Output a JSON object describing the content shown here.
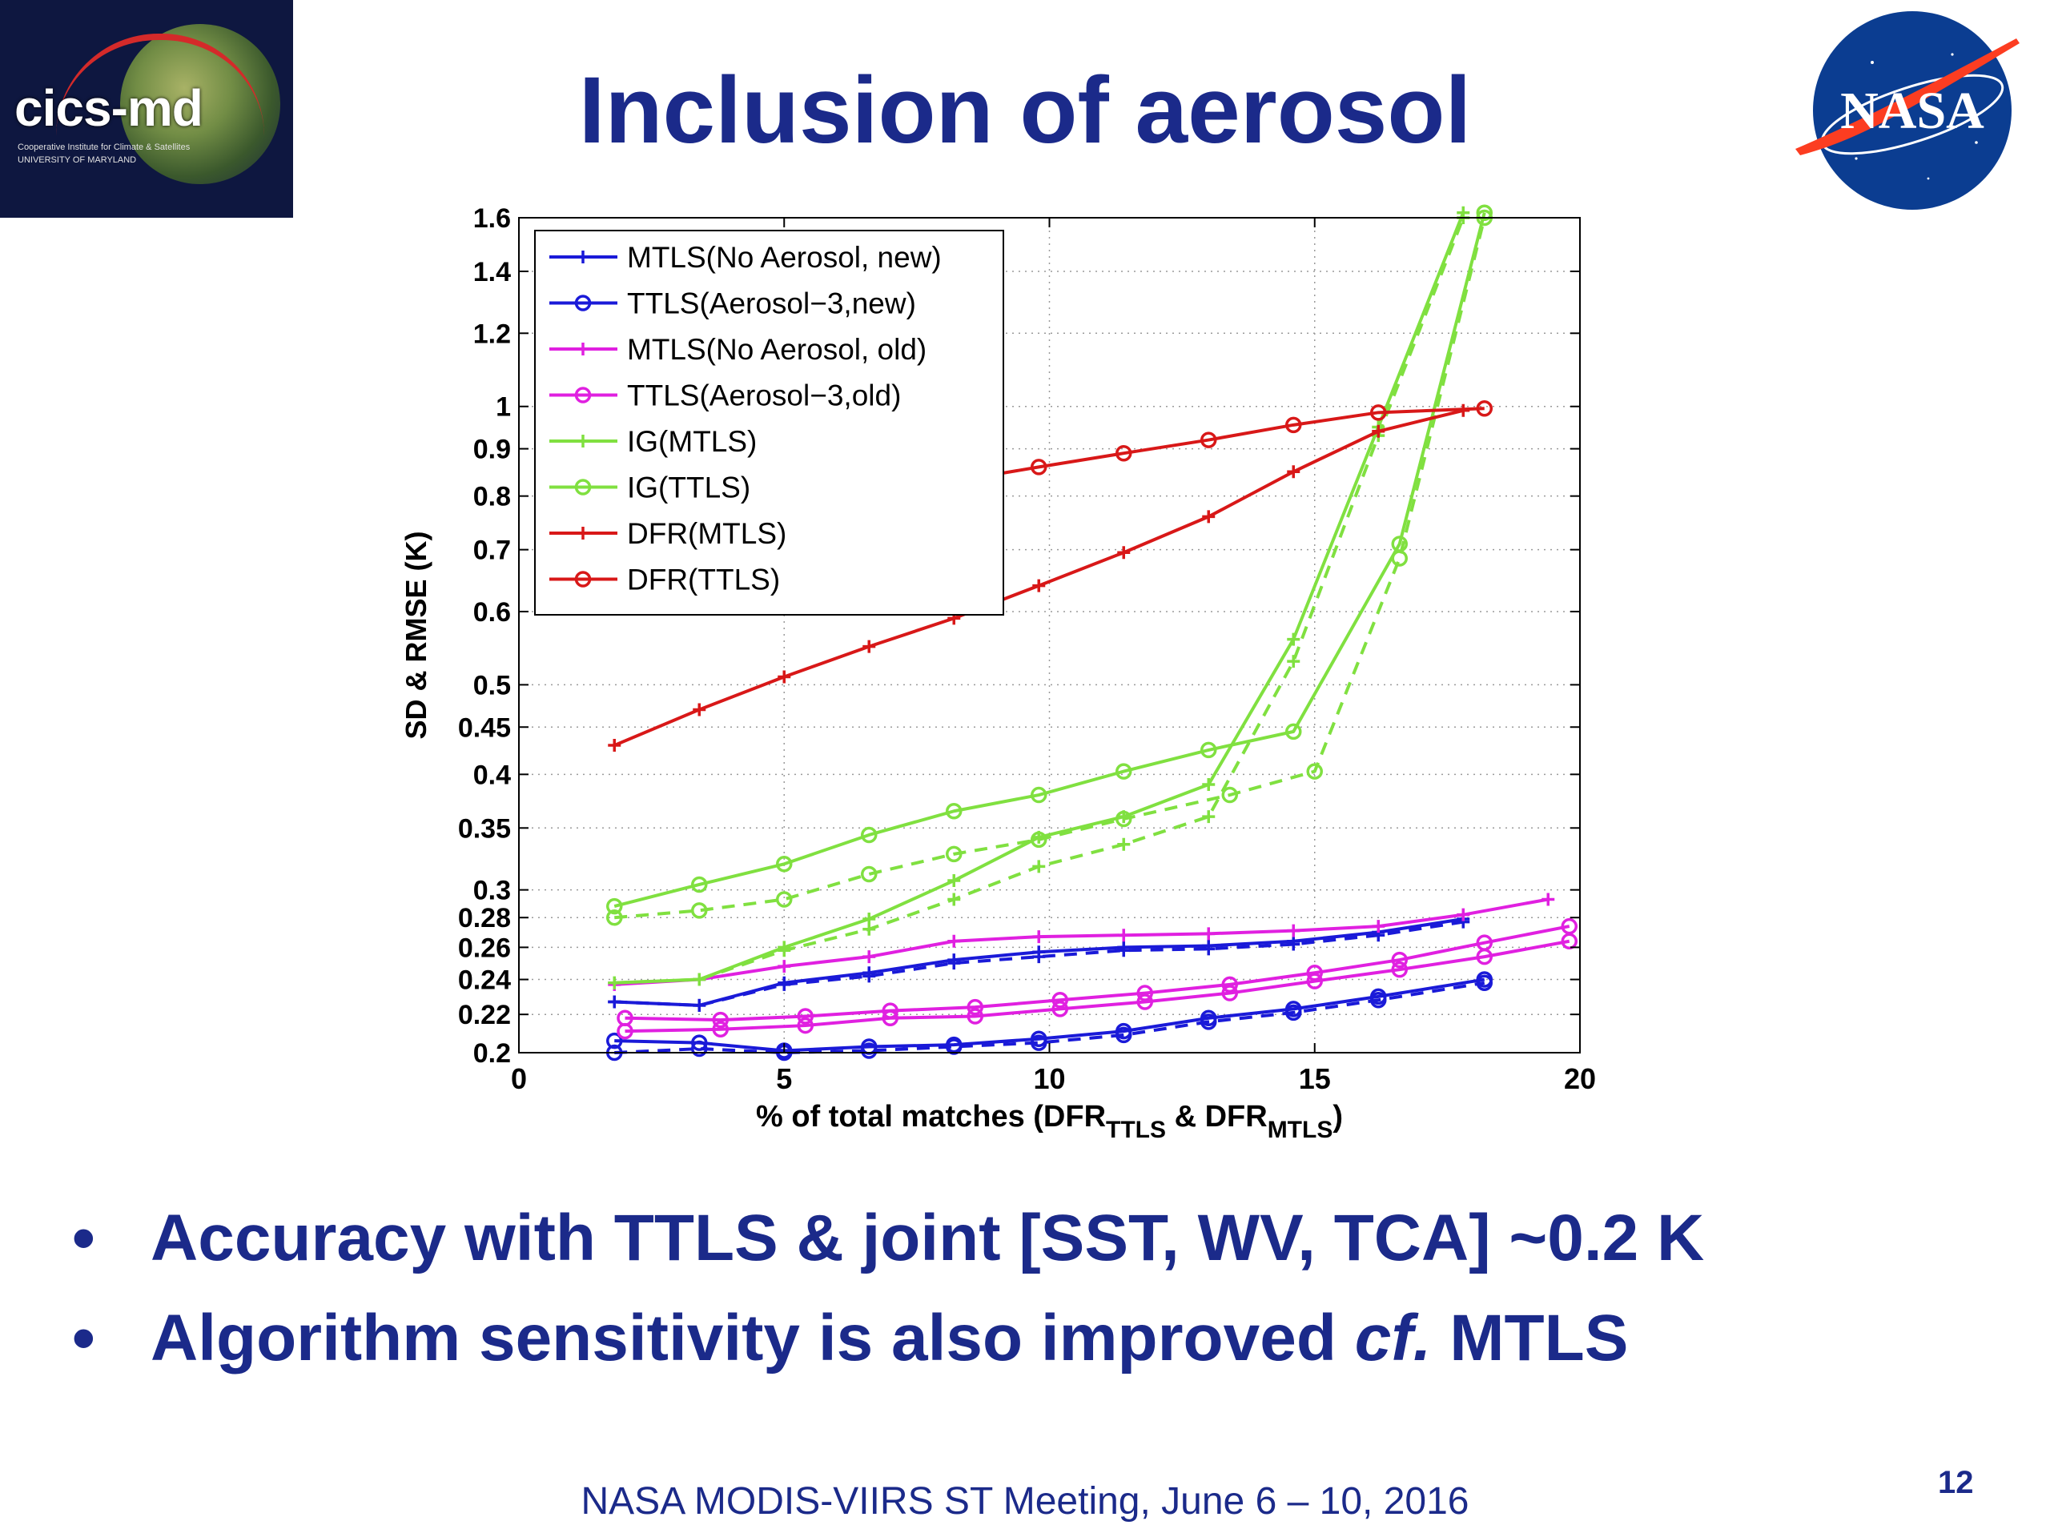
{
  "logo": {
    "word": "cics-md",
    "line1": "Cooperative Institute for Climate & Satellites",
    "line2": "UNIVERSITY OF MARYLAND"
  },
  "nasa_logo": {
    "word": "NASA"
  },
  "title": "Inclusion of aerosol",
  "chart_data": {
    "type": "line",
    "xlabel": "% of total matches (DFR_TTLS & DFR_MTLS)",
    "xlabel_parts": {
      "a": "% of total matches (DFR",
      "sub1": "TTLS",
      "b": " & DFR",
      "sub2": "MTLS",
      "c": ")"
    },
    "ylabel": "SD & RMSE (K)",
    "xlim": [
      0,
      20
    ],
    "ylim": [
      0.2,
      1.6
    ],
    "yscale": "log",
    "grid": true,
    "legend_position": "top-left",
    "xticks": [
      "0",
      "5",
      "10",
      "15",
      "20"
    ],
    "xtick_values": [
      0,
      5,
      10,
      15,
      20
    ],
    "yticks": [
      "0.2",
      "0.22",
      "0.24",
      "0.26",
      "0.28",
      "0.3",
      "0.35",
      "0.4",
      "0.45",
      "0.5",
      "0.6",
      "0.7",
      "0.8",
      "0.9",
      "1",
      "1.2",
      "1.4",
      "1.6"
    ],
    "ytick_values": [
      0.2,
      0.22,
      0.24,
      0.26,
      0.28,
      0.3,
      0.35,
      0.4,
      0.45,
      0.5,
      0.6,
      0.7,
      0.8,
      0.9,
      1,
      1.2,
      1.4,
      1.6
    ],
    "legend": [
      {
        "name": "MTLS(No Aerosol, new)",
        "color": "#1a1ad8",
        "marker": "plus"
      },
      {
        "name": "TTLS(Aerosol−3,new)",
        "color": "#1a1ad8",
        "marker": "circle"
      },
      {
        "name": "MTLS(No Aerosol, old)",
        "color": "#e020e0",
        "marker": "plus"
      },
      {
        "name": "TTLS(Aerosol−3,old)",
        "color": "#e020e0",
        "marker": "circle"
      },
      {
        "name": "IG(MTLS)",
        "color": "#80e040",
        "marker": "plus"
      },
      {
        "name": "IG(TTLS)",
        "color": "#80e040",
        "marker": "circle"
      },
      {
        "name": "DFR(MTLS)",
        "color": "#d81818",
        "marker": "plus"
      },
      {
        "name": "DFR(TTLS)",
        "color": "#d81818",
        "marker": "circle"
      }
    ],
    "series": [
      {
        "color": "#1a1ad8",
        "marker": "plus",
        "dash": false,
        "x": [
          1.8,
          3.4,
          5.0,
          6.6,
          8.2,
          9.8,
          11.4,
          13.0,
          14.6,
          16.2,
          17.8
        ],
        "y": [
          0.227,
          0.225,
          0.238,
          0.244,
          0.252,
          0.257,
          0.26,
          0.261,
          0.264,
          0.27,
          0.279
        ]
      },
      {
        "color": "#1a1ad8",
        "marker": "plus",
        "dash": true,
        "x": [
          1.8,
          3.4,
          5.0,
          6.6,
          8.2,
          9.8,
          11.4,
          13.0,
          14.6,
          16.2,
          17.8
        ],
        "y": [
          0.227,
          0.225,
          0.237,
          0.242,
          0.25,
          0.254,
          0.258,
          0.259,
          0.262,
          0.268,
          0.277
        ]
      },
      {
        "color": "#1a1ad8",
        "marker": "circle",
        "dash": false,
        "x": [
          1.8,
          3.4,
          5.0,
          6.6,
          8.2,
          9.8,
          11.4,
          13.0,
          14.6,
          16.2,
          18.2
        ],
        "y": [
          0.206,
          0.205,
          0.201,
          0.203,
          0.204,
          0.207,
          0.211,
          0.218,
          0.223,
          0.23,
          0.24
        ]
      },
      {
        "color": "#1a1ad8",
        "marker": "circle",
        "dash": true,
        "x": [
          1.8,
          3.4,
          5.0,
          6.6,
          8.2,
          9.8,
          11.4,
          13.0,
          14.6,
          16.2,
          18.2
        ],
        "y": [
          0.2,
          0.202,
          0.2,
          0.201,
          0.203,
          0.205,
          0.209,
          0.216,
          0.221,
          0.228,
          0.238
        ]
      },
      {
        "color": "#e020e0",
        "marker": "plus",
        "dash": false,
        "x": [
          1.8,
          3.4,
          5.0,
          6.6,
          8.2,
          9.8,
          11.4,
          13.0,
          14.6,
          16.2,
          17.8,
          19.4
        ],
        "y": [
          0.237,
          0.24,
          0.248,
          0.254,
          0.264,
          0.267,
          0.268,
          0.269,
          0.271,
          0.274,
          0.282,
          0.293
        ]
      },
      {
        "color": "#e020e0",
        "marker": "circle",
        "dash": false,
        "x": [
          2.0,
          3.8,
          5.4,
          7.0,
          8.6,
          10.2,
          11.8,
          13.4,
          15.0,
          16.6,
          18.2,
          19.8
        ],
        "y": [
          0.218,
          0.217,
          0.219,
          0.222,
          0.224,
          0.228,
          0.232,
          0.237,
          0.244,
          0.252,
          0.263,
          0.274
        ]
      },
      {
        "color": "#e020e0",
        "marker": "circle",
        "dash": false,
        "x": [
          2.0,
          3.8,
          5.4,
          7.0,
          8.6,
          10.2,
          11.8,
          13.4,
          15.0,
          16.6,
          18.2,
          19.8
        ],
        "y": [
          0.211,
          0.212,
          0.214,
          0.218,
          0.219,
          0.223,
          0.227,
          0.232,
          0.239,
          0.246,
          0.254,
          0.264
        ]
      },
      {
        "color": "#80e040",
        "marker": "plus",
        "dash": false,
        "x": [
          1.8,
          3.4,
          5.0,
          6.6,
          8.2,
          9.8,
          11.4,
          13.0,
          14.6,
          16.2,
          17.8
        ],
        "y": [
          0.238,
          0.24,
          0.26,
          0.279,
          0.307,
          0.342,
          0.36,
          0.39,
          0.56,
          0.95,
          1.62
        ]
      },
      {
        "color": "#80e040",
        "marker": "plus",
        "dash": true,
        "x": [
          1.8,
          3.4,
          5.0,
          6.6,
          8.2,
          9.8,
          11.4,
          13.0,
          14.6,
          16.2,
          17.8
        ],
        "y": [
          0.238,
          0.24,
          0.258,
          0.272,
          0.293,
          0.318,
          0.336,
          0.36,
          0.53,
          0.93,
          1.6
        ]
      },
      {
        "color": "#80e040",
        "marker": "circle",
        "dash": false,
        "x": [
          1.8,
          3.4,
          5.0,
          6.6,
          8.2,
          9.8,
          11.4,
          13.0,
          14.6,
          16.6,
          18.2
        ],
        "y": [
          0.288,
          0.304,
          0.32,
          0.344,
          0.365,
          0.38,
          0.403,
          0.425,
          0.445,
          0.71,
          1.62
        ]
      },
      {
        "color": "#80e040",
        "marker": "circle",
        "dash": true,
        "x": [
          1.8,
          3.4,
          5.0,
          6.6,
          8.2,
          9.8,
          11.4,
          13.4,
          15.0,
          16.6,
          18.2
        ],
        "y": [
          0.28,
          0.285,
          0.293,
          0.312,
          0.328,
          0.34,
          0.358,
          0.38,
          0.403,
          0.685,
          1.6
        ]
      },
      {
        "color": "#d81818",
        "marker": "plus",
        "dash": false,
        "x": [
          1.8,
          3.4,
          5.0,
          6.6,
          8.2,
          9.8,
          11.4,
          13.0,
          14.6,
          16.2,
          17.8
        ],
        "y": [
          0.43,
          0.47,
          0.51,
          0.55,
          0.59,
          0.64,
          0.695,
          0.76,
          0.85,
          0.94,
          0.99
        ]
      },
      {
        "color": "#d81818",
        "marker": "circle",
        "dash": false,
        "x": [
          1.8,
          3.4,
          5.0,
          6.6,
          8.2,
          9.8,
          11.4,
          13.0,
          14.6,
          16.2,
          18.2
        ],
        "y": [
          0.68,
          0.73,
          0.765,
          0.8,
          0.83,
          0.86,
          0.89,
          0.92,
          0.955,
          0.985,
          0.995
        ]
      }
    ]
  },
  "bullets": [
    {
      "dot": "•",
      "text": "Accuracy with TTLS & joint [SST, WV, TCA] ~0.2 K"
    },
    {
      "dot": "•",
      "text_a": "Algorithm sensitivity is also improved ",
      "text_italic": "cf.",
      "text_b": " MTLS"
    }
  ],
  "footer": "NASA MODIS-VIIRS ST Meeting, June 6 – 10, 2016",
  "page_number": "12"
}
